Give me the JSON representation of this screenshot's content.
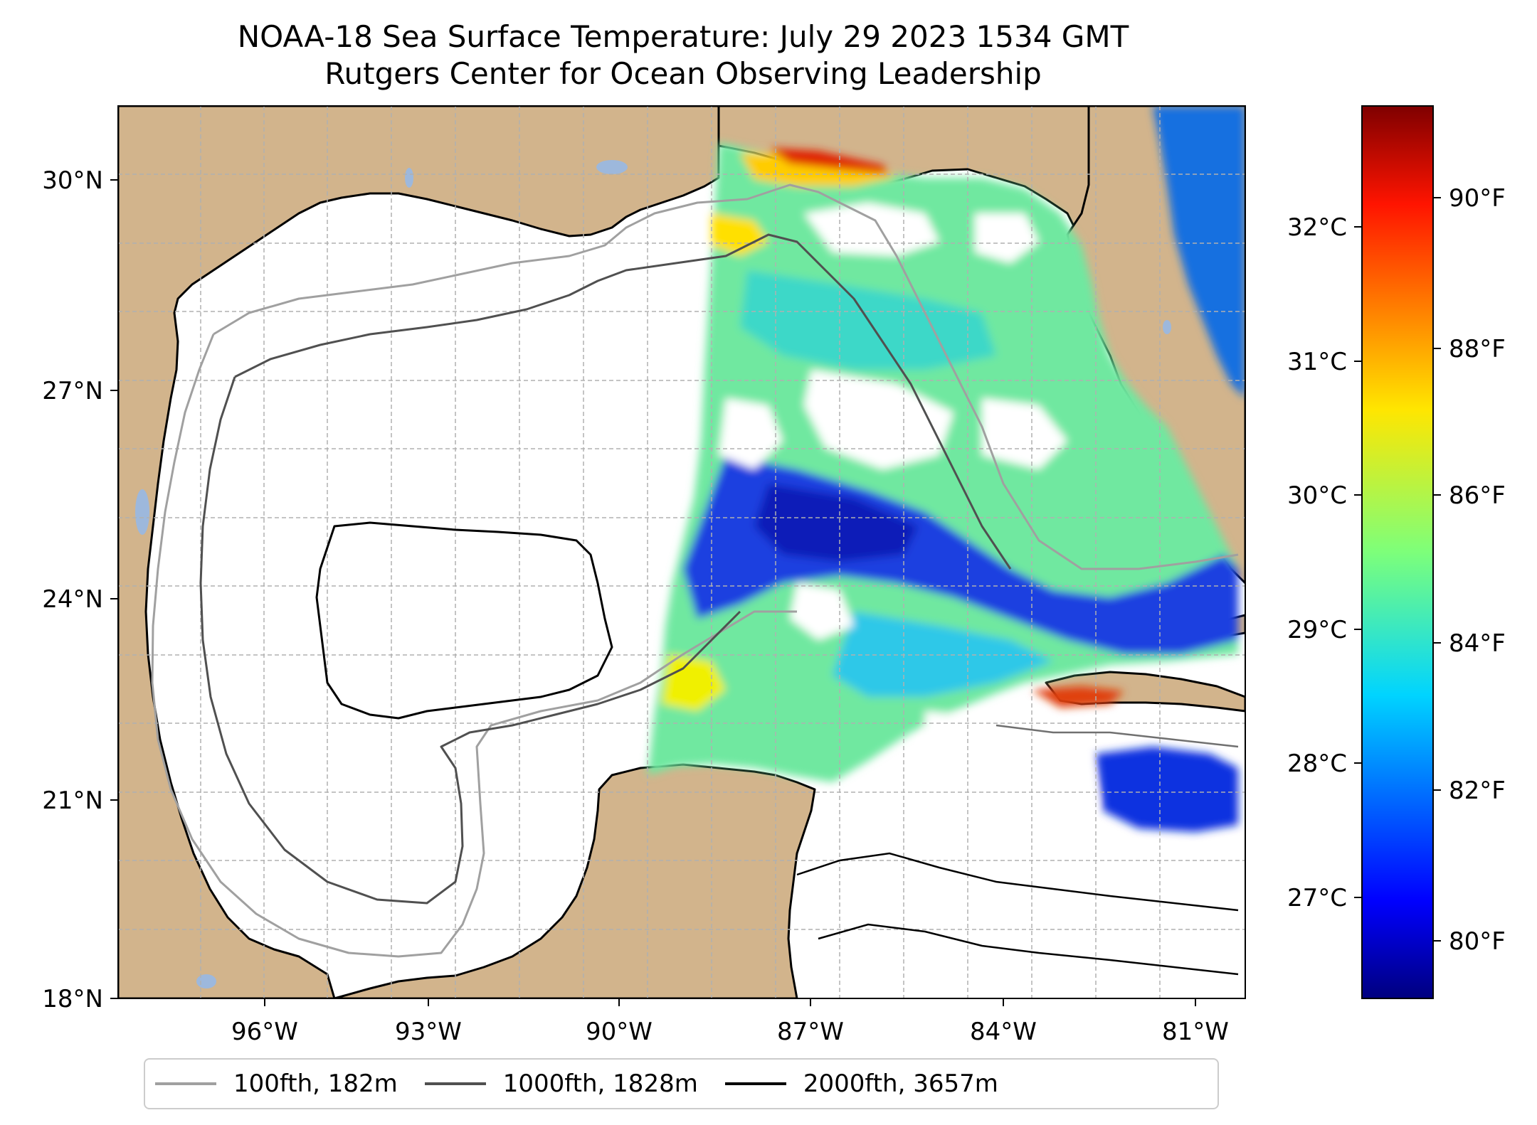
{
  "title": {
    "line1": "NOAA-18 Sea Surface Temperature: July 29 2023 1534 GMT",
    "line2": "Rutgers Center for Ocean Observing Leadership"
  },
  "map": {
    "lon_range": [
      -98,
      -80.3
    ],
    "lat_range": [
      18,
      31
    ],
    "lon_ticks": [
      "96°W",
      "93°W",
      "90°W",
      "87°W",
      "84°W",
      "81°W"
    ],
    "lat_ticks": [
      "18°N",
      "21°N",
      "24°N",
      "27°N",
      "30°N"
    ],
    "colors": {
      "land": "#d2b48c",
      "water_no_data": "#ffffff",
      "lakes": "#9db8dc",
      "grid": "#b0b0b0",
      "coastline": "#000000"
    }
  },
  "colorbar": {
    "celsius_ticks": [
      "27°C",
      "28°C",
      "29°C",
      "30°C",
      "31°C",
      "32°C"
    ],
    "fahrenheit_ticks": [
      "80°F",
      "82°F",
      "84°F",
      "86°F",
      "88°F",
      "90°F"
    ],
    "colormap": "jet",
    "range_f": [
      79.2,
      91.6
    ]
  },
  "legend": {
    "items": [
      {
        "label": "100fth, 182m",
        "color": "#a0a0a0"
      },
      {
        "label": "1000fth, 1828m",
        "color": "#505050"
      },
      {
        "label": "2000fth, 3657m",
        "color": "#000000"
      }
    ]
  }
}
